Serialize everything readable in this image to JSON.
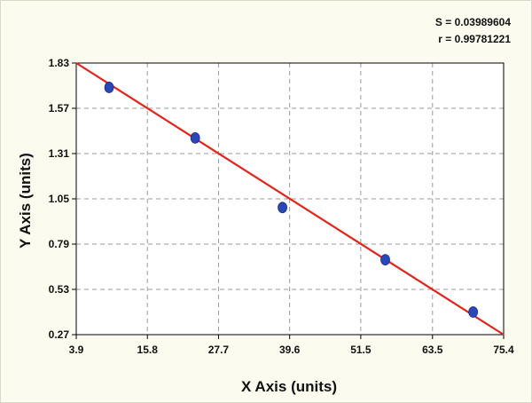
{
  "chart_data": {
    "type": "scatter",
    "xlabel": "X Axis (units)",
    "ylabel": "Y Axis (units)",
    "xlim": [
      3.9,
      75.4
    ],
    "ylim": [
      0.27,
      1.83
    ],
    "xticks": [
      3.9,
      15.8,
      27.7,
      39.6,
      51.5,
      63.5,
      75.4
    ],
    "xtick_labels": [
      "3.9",
      "15.8",
      "27.7",
      "39.6",
      "51.5",
      "63.5",
      "75.4"
    ],
    "yticks": [
      0.27,
      0.53,
      0.79,
      1.05,
      1.31,
      1.57,
      1.83
    ],
    "ytick_labels": [
      "0.27",
      "0.53",
      "0.79",
      "1.05",
      "1.31",
      "1.57",
      "1.83"
    ],
    "grid": true,
    "points": [
      {
        "x": 9.4,
        "y": 1.69
      },
      {
        "x": 23.8,
        "y": 1.4
      },
      {
        "x": 38.4,
        "y": 1.0
      },
      {
        "x": 55.6,
        "y": 0.7
      },
      {
        "x": 70.3,
        "y": 0.4
      }
    ],
    "fit_line": {
      "x": [
        3.9,
        75.4
      ],
      "y": [
        1.83,
        0.27
      ]
    },
    "annotations": [
      "S = 0.03989604",
      "r = 0.99781221"
    ],
    "colors": {
      "points": "#2a47b8",
      "fit": "#e3241b",
      "grid": "#9a9a9a",
      "axes": "#000000"
    }
  }
}
